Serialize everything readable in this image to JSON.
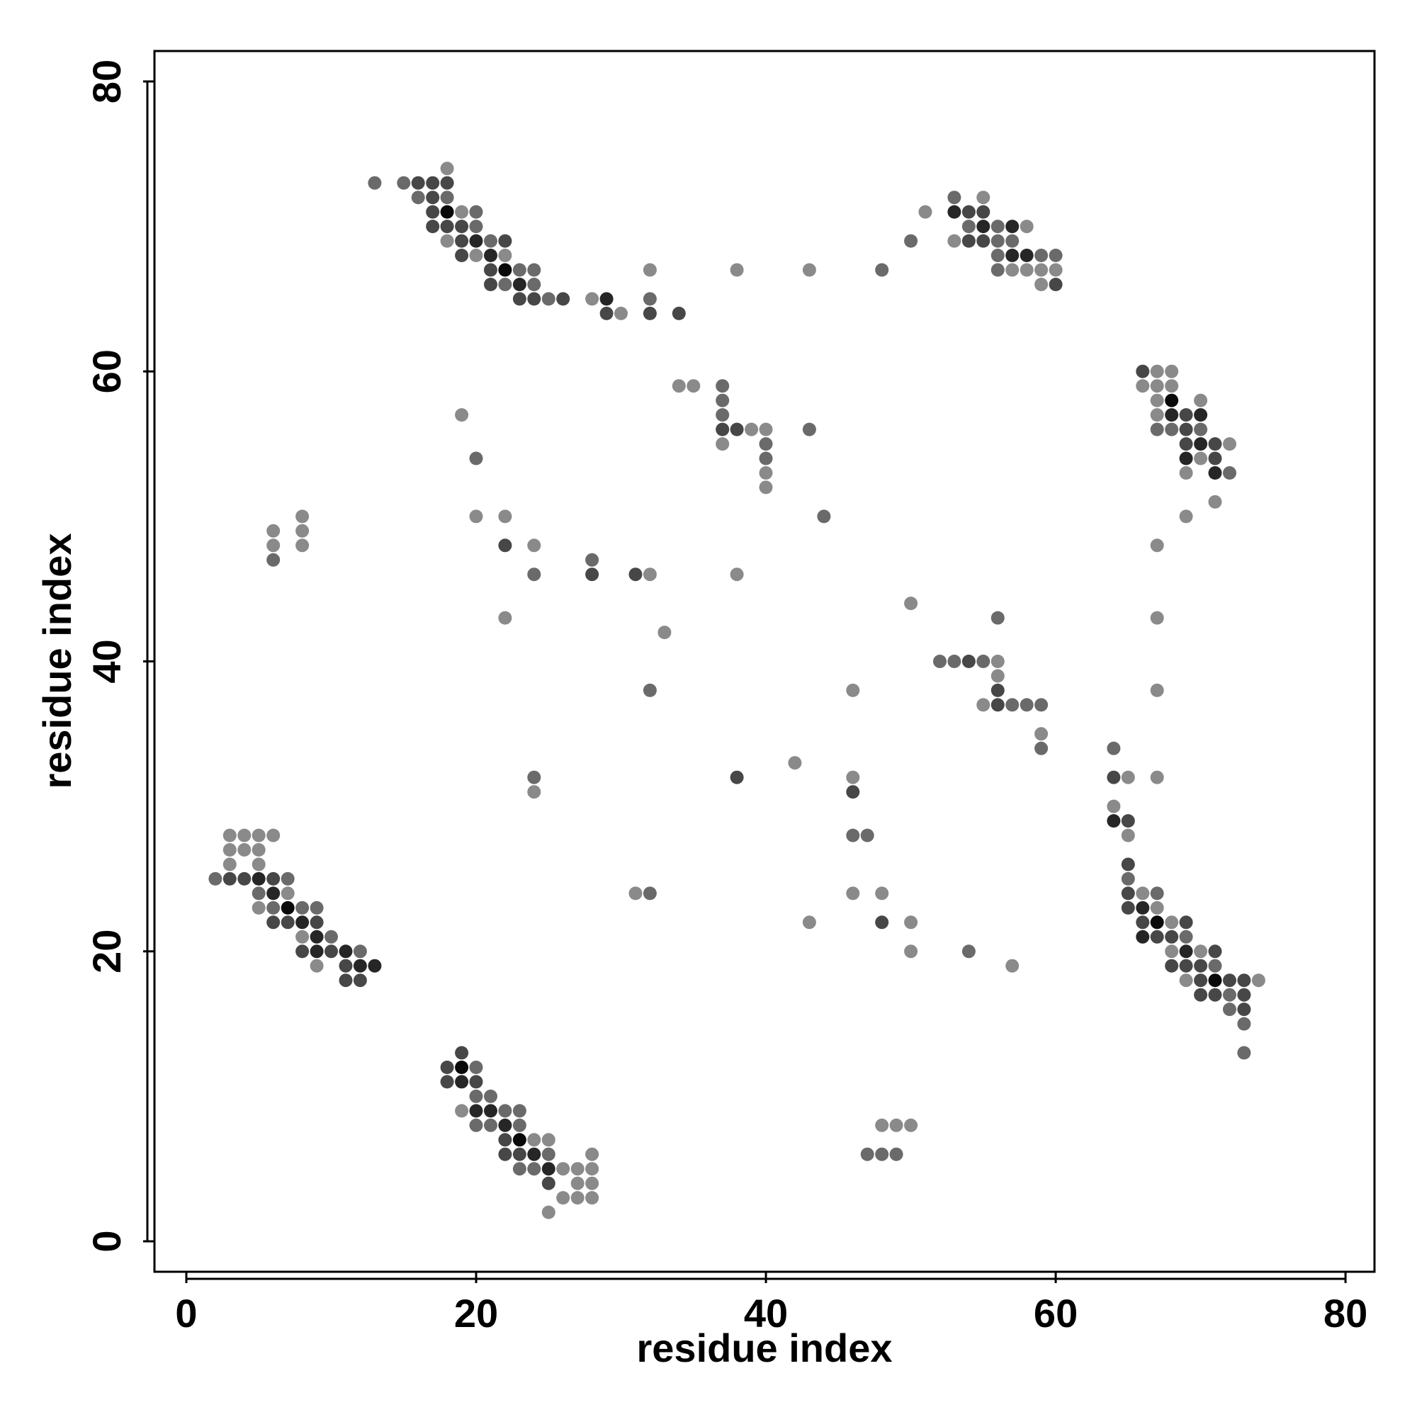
{
  "chart_data": {
    "type": "scatter",
    "title": "",
    "xlabel": "residue index",
    "ylabel": "residue index",
    "xlim": [
      -2.2,
      82
    ],
    "ylim": [
      -2.1,
      82.1
    ],
    "xticks": [
      0,
      20,
      40,
      60,
      80
    ],
    "yticks": [
      0,
      20,
      40,
      60,
      80
    ],
    "grid": false,
    "legend": "none",
    "marker_colors": {
      "1": "#8a8a8a",
      "2": "#6a6a6a",
      "3": "#474747",
      "4": "#262626",
      "5": "#0a0a0a"
    },
    "points": [
      [
        13,
        73,
        2
      ],
      [
        15,
        73,
        2
      ],
      [
        16,
        73,
        3
      ],
      [
        17,
        73,
        3
      ],
      [
        18,
        73,
        3
      ],
      [
        18,
        74,
        1
      ],
      [
        16,
        72,
        2
      ],
      [
        17,
        72,
        3
      ],
      [
        18,
        72,
        2
      ],
      [
        17,
        71,
        3
      ],
      [
        18,
        71,
        5
      ],
      [
        19,
        71,
        1
      ],
      [
        20,
        71,
        2
      ],
      [
        17,
        70,
        3
      ],
      [
        18,
        70,
        3
      ],
      [
        19,
        70,
        3
      ],
      [
        20,
        70,
        2
      ],
      [
        18,
        69,
        1
      ],
      [
        19,
        69,
        3
      ],
      [
        20,
        69,
        4
      ],
      [
        21,
        69,
        2
      ],
      [
        22,
        69,
        3
      ],
      [
        19,
        68,
        3
      ],
      [
        20,
        68,
        1
      ],
      [
        21,
        68,
        4
      ],
      [
        22,
        68,
        1
      ],
      [
        21,
        67,
        3
      ],
      [
        22,
        67,
        5
      ],
      [
        23,
        67,
        2
      ],
      [
        24,
        67,
        2
      ],
      [
        21,
        66,
        3
      ],
      [
        22,
        66,
        2
      ],
      [
        23,
        66,
        4
      ],
      [
        24,
        66,
        2
      ],
      [
        23,
        65,
        3
      ],
      [
        24,
        65,
        3
      ],
      [
        25,
        65,
        2
      ],
      [
        26,
        65,
        3
      ],
      [
        28,
        65,
        1
      ],
      [
        29,
        65,
        4
      ],
      [
        32,
        65,
        2
      ],
      [
        29,
        64,
        3
      ],
      [
        30,
        64,
        1
      ],
      [
        32,
        64,
        3
      ],
      [
        34,
        64,
        3
      ],
      [
        32,
        67,
        1
      ],
      [
        38,
        67,
        1
      ],
      [
        43,
        67,
        1
      ],
      [
        48,
        67,
        2
      ],
      [
        50,
        69,
        2
      ],
      [
        51,
        71,
        1
      ],
      [
        53,
        72,
        2
      ],
      [
        55,
        72,
        1
      ],
      [
        53,
        71,
        4
      ],
      [
        54,
        71,
        3
      ],
      [
        55,
        71,
        3
      ],
      [
        54,
        70,
        2
      ],
      [
        55,
        70,
        4
      ],
      [
        56,
        70,
        2
      ],
      [
        57,
        70,
        4
      ],
      [
        53,
        69,
        1
      ],
      [
        54,
        69,
        3
      ],
      [
        55,
        69,
        3
      ],
      [
        56,
        69,
        2
      ],
      [
        57,
        69,
        2
      ],
      [
        58,
        70,
        1
      ],
      [
        56,
        68,
        2
      ],
      [
        57,
        68,
        4
      ],
      [
        58,
        68,
        4
      ],
      [
        59,
        68,
        2
      ],
      [
        60,
        68,
        2
      ],
      [
        56,
        67,
        2
      ],
      [
        57,
        67,
        1
      ],
      [
        58,
        67,
        1
      ],
      [
        59,
        67,
        1
      ],
      [
        60,
        67,
        1
      ],
      [
        59,
        66,
        1
      ],
      [
        60,
        66,
        3
      ],
      [
        66,
        60,
        3
      ],
      [
        67,
        60,
        1
      ],
      [
        68,
        60,
        1
      ],
      [
        66,
        59,
        1
      ],
      [
        67,
        59,
        1
      ],
      [
        68,
        59,
        1
      ],
      [
        67,
        58,
        1
      ],
      [
        68,
        58,
        5
      ],
      [
        70,
        58,
        1
      ],
      [
        67,
        57,
        1
      ],
      [
        68,
        57,
        4
      ],
      [
        69,
        57,
        3
      ],
      [
        70,
        57,
        4
      ],
      [
        67,
        56,
        2
      ],
      [
        68,
        56,
        2
      ],
      [
        69,
        56,
        3
      ],
      [
        70,
        56,
        2
      ],
      [
        69,
        55,
        3
      ],
      [
        70,
        55,
        4
      ],
      [
        71,
        55,
        3
      ],
      [
        72,
        55,
        1
      ],
      [
        69,
        54,
        4
      ],
      [
        70,
        54,
        1
      ],
      [
        71,
        54,
        3
      ],
      [
        69,
        53,
        1
      ],
      [
        71,
        53,
        4
      ],
      [
        72,
        53,
        2
      ],
      [
        71,
        51,
        1
      ],
      [
        69,
        50,
        1
      ],
      [
        67,
        48,
        1
      ],
      [
        67,
        43,
        1
      ],
      [
        67,
        38,
        1
      ],
      [
        67,
        32,
        1
      ],
      [
        37,
        59,
        2
      ],
      [
        34,
        59,
        1
      ],
      [
        35,
        59,
        1
      ],
      [
        37,
        58,
        2
      ],
      [
        37,
        57,
        2
      ],
      [
        37,
        56,
        3
      ],
      [
        38,
        56,
        3
      ],
      [
        39,
        56,
        1
      ],
      [
        40,
        56,
        1
      ],
      [
        43,
        56,
        2
      ],
      [
        37,
        55,
        1
      ],
      [
        40,
        55,
        2
      ],
      [
        40,
        54,
        2
      ],
      [
        40,
        53,
        1
      ],
      [
        40,
        52,
        1
      ],
      [
        44,
        50,
        2
      ],
      [
        19,
        57,
        1
      ],
      [
        20,
        54,
        2
      ],
      [
        20,
        50,
        1
      ],
      [
        22,
        50,
        1
      ],
      [
        22,
        48,
        3
      ],
      [
        24,
        48,
        1
      ],
      [
        24,
        46,
        2
      ],
      [
        28,
        47,
        2
      ],
      [
        28,
        46,
        3
      ],
      [
        31,
        46,
        3
      ],
      [
        32,
        46,
        1
      ],
      [
        38,
        46,
        1
      ],
      [
        22,
        43,
        1
      ],
      [
        33,
        42,
        1
      ],
      [
        32,
        38,
        2
      ],
      [
        6,
        49,
        1
      ],
      [
        6,
        48,
        1
      ],
      [
        6,
        47,
        2
      ],
      [
        8,
        50,
        1
      ],
      [
        8,
        49,
        1
      ],
      [
        8,
        48,
        1
      ],
      [
        50,
        44,
        1
      ],
      [
        56,
        43,
        2
      ],
      [
        52,
        40,
        2
      ],
      [
        53,
        40,
        2
      ],
      [
        54,
        40,
        3
      ],
      [
        55,
        40,
        2
      ],
      [
        56,
        40,
        1
      ],
      [
        56,
        39,
        1
      ],
      [
        56,
        38,
        3
      ],
      [
        55,
        37,
        1
      ],
      [
        56,
        37,
        3
      ],
      [
        57,
        37,
        2
      ],
      [
        58,
        37,
        2
      ],
      [
        59,
        37,
        2
      ],
      [
        59,
        35,
        1
      ],
      [
        59,
        34,
        2
      ],
      [
        46,
        38,
        1
      ],
      [
        42,
        33,
        1
      ],
      [
        38,
        32,
        3
      ],
      [
        24,
        32,
        2
      ],
      [
        24,
        31,
        1
      ],
      [
        46,
        32,
        1
      ],
      [
        46,
        31,
        3
      ],
      [
        46,
        28,
        2
      ],
      [
        47,
        28,
        2
      ],
      [
        46,
        24,
        1
      ],
      [
        48,
        24,
        1
      ],
      [
        31,
        24,
        1
      ],
      [
        32,
        24,
        2
      ],
      [
        43,
        22,
        1
      ],
      [
        48,
        22,
        3
      ],
      [
        50,
        22,
        1
      ],
      [
        50,
        20,
        1
      ],
      [
        54,
        20,
        2
      ],
      [
        57,
        19,
        1
      ],
      [
        47,
        6,
        2
      ],
      [
        48,
        6,
        2
      ],
      [
        49,
        6,
        2
      ],
      [
        48,
        8,
        1
      ],
      [
        49,
        8,
        1
      ],
      [
        50,
        8,
        1
      ],
      [
        64,
        34,
        2
      ],
      [
        64,
        32,
        3
      ],
      [
        65,
        32,
        1
      ],
      [
        64,
        30,
        1
      ],
      [
        64,
        29,
        4
      ],
      [
        65,
        29,
        3
      ],
      [
        65,
        28,
        1
      ],
      [
        65,
        26,
        3
      ],
      [
        65,
        25,
        2
      ],
      [
        65,
        24,
        3
      ],
      [
        66,
        24,
        1
      ],
      [
        67,
        24,
        2
      ],
      [
        65,
        23,
        3
      ],
      [
        66,
        23,
        4
      ],
      [
        67,
        23,
        1
      ],
      [
        66,
        22,
        3
      ],
      [
        67,
        22,
        5
      ],
      [
        68,
        22,
        1
      ],
      [
        69,
        22,
        3
      ],
      [
        66,
        21,
        4
      ],
      [
        67,
        21,
        3
      ],
      [
        68,
        21,
        3
      ],
      [
        69,
        21,
        2
      ],
      [
        68,
        20,
        1
      ],
      [
        69,
        20,
        4
      ],
      [
        70,
        20,
        1
      ],
      [
        71,
        20,
        3
      ],
      [
        68,
        19,
        3
      ],
      [
        69,
        19,
        3
      ],
      [
        70,
        19,
        3
      ],
      [
        71,
        19,
        2
      ],
      [
        69,
        18,
        1
      ],
      [
        70,
        18,
        3
      ],
      [
        71,
        18,
        5
      ],
      [
        72,
        18,
        3
      ],
      [
        73,
        18,
        3
      ],
      [
        74,
        18,
        1
      ],
      [
        70,
        17,
        3
      ],
      [
        71,
        17,
        3
      ],
      [
        72,
        17,
        2
      ],
      [
        73,
        17,
        3
      ],
      [
        72,
        16,
        2
      ],
      [
        73,
        16,
        3
      ],
      [
        73,
        15,
        2
      ],
      [
        73,
        13,
        2
      ],
      [
        3,
        28,
        1
      ],
      [
        4,
        28,
        1
      ],
      [
        5,
        28,
        1
      ],
      [
        6,
        28,
        1
      ],
      [
        3,
        27,
        1
      ],
      [
        4,
        27,
        1
      ],
      [
        5,
        27,
        1
      ],
      [
        3,
        26,
        1
      ],
      [
        5,
        26,
        1
      ],
      [
        2,
        25,
        2
      ],
      [
        3,
        25,
        3
      ],
      [
        4,
        25,
        3
      ],
      [
        5,
        25,
        4
      ],
      [
        6,
        25,
        3
      ],
      [
        7,
        25,
        2
      ],
      [
        5,
        24,
        2
      ],
      [
        6,
        24,
        4
      ],
      [
        7,
        24,
        1
      ],
      [
        5,
        23,
        1
      ],
      [
        6,
        23,
        2
      ],
      [
        7,
        23,
        5
      ],
      [
        8,
        23,
        2
      ],
      [
        9,
        23,
        2
      ],
      [
        6,
        22,
        3
      ],
      [
        7,
        22,
        3
      ],
      [
        8,
        22,
        4
      ],
      [
        9,
        22,
        3
      ],
      [
        8,
        21,
        1
      ],
      [
        9,
        21,
        4
      ],
      [
        10,
        21,
        2
      ],
      [
        8,
        20,
        3
      ],
      [
        9,
        20,
        4
      ],
      [
        10,
        20,
        3
      ],
      [
        11,
        20,
        4
      ],
      [
        12,
        20,
        2
      ],
      [
        9,
        19,
        1
      ],
      [
        11,
        19,
        3
      ],
      [
        12,
        19,
        4
      ],
      [
        13,
        19,
        4
      ],
      [
        11,
        18,
        3
      ],
      [
        12,
        18,
        3
      ],
      [
        19,
        13,
        3
      ],
      [
        18,
        12,
        3
      ],
      [
        19,
        12,
        5
      ],
      [
        20,
        12,
        2
      ],
      [
        18,
        11,
        3
      ],
      [
        19,
        11,
        4
      ],
      [
        20,
        11,
        3
      ],
      [
        20,
        10,
        2
      ],
      [
        21,
        10,
        2
      ],
      [
        19,
        9,
        1
      ],
      [
        20,
        9,
        4
      ],
      [
        21,
        9,
        4
      ],
      [
        22,
        9,
        2
      ],
      [
        23,
        9,
        2
      ],
      [
        20,
        8,
        2
      ],
      [
        21,
        8,
        2
      ],
      [
        22,
        8,
        4
      ],
      [
        23,
        8,
        2
      ],
      [
        22,
        7,
        3
      ],
      [
        23,
        7,
        5
      ],
      [
        24,
        7,
        1
      ],
      [
        25,
        7,
        1
      ],
      [
        22,
        6,
        3
      ],
      [
        23,
        6,
        3
      ],
      [
        24,
        6,
        4
      ],
      [
        25,
        6,
        2
      ],
      [
        23,
        5,
        2
      ],
      [
        24,
        5,
        2
      ],
      [
        25,
        5,
        4
      ],
      [
        26,
        5,
        1
      ],
      [
        27,
        5,
        1
      ],
      [
        28,
        5,
        1
      ],
      [
        25,
        4,
        3
      ],
      [
        27,
        4,
        1
      ],
      [
        28,
        4,
        1
      ],
      [
        28,
        6,
        1
      ],
      [
        26,
        3,
        1
      ],
      [
        27,
        3,
        1
      ],
      [
        28,
        3,
        1
      ],
      [
        25,
        2,
        1
      ]
    ]
  }
}
